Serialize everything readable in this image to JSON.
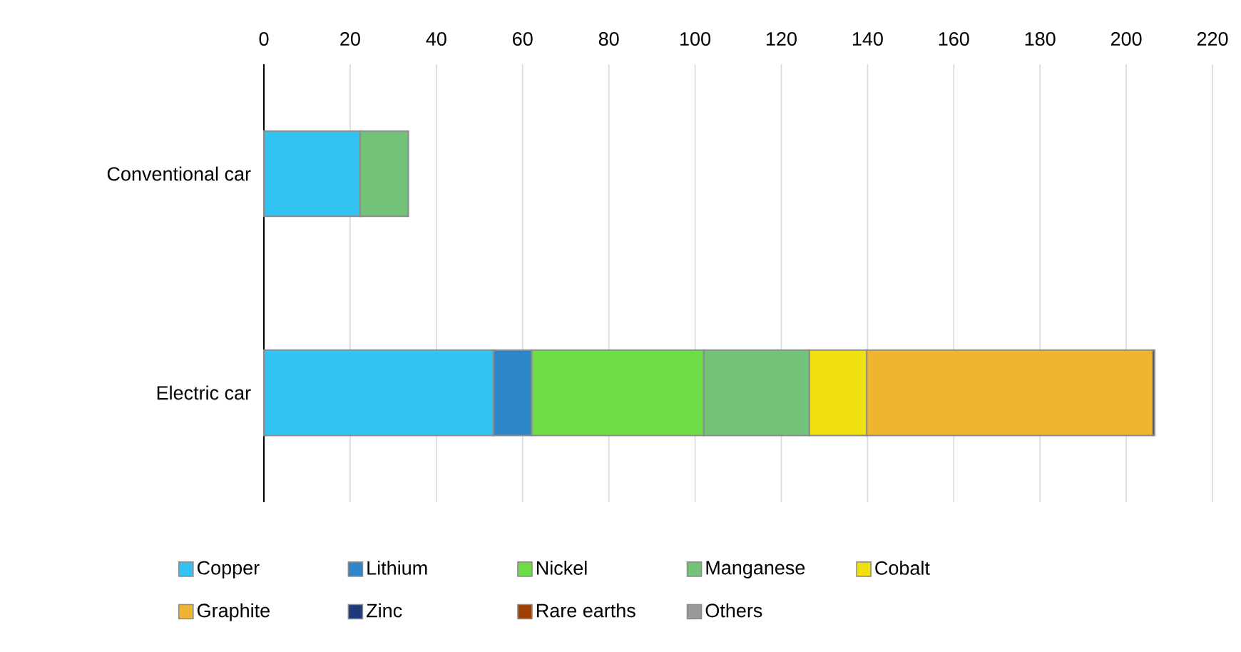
{
  "chart_data": {
    "type": "bar",
    "orientation": "horizontal",
    "stacked": true,
    "categories": [
      "Conventional car",
      "Electric car"
    ],
    "series": [
      {
        "name": "Copper",
        "color": "#33c3f2",
        "values": [
          22.3,
          53.2
        ]
      },
      {
        "name": "Lithium",
        "color": "#2e86c8",
        "values": [
          0,
          8.9
        ]
      },
      {
        "name": "Nickel",
        "color": "#6edc46",
        "values": [
          0,
          39.9
        ]
      },
      {
        "name": "Manganese",
        "color": "#72c27a",
        "values": [
          11.2,
          24.5
        ]
      },
      {
        "name": "Cobalt",
        "color": "#f0e010",
        "values": [
          0,
          13.3
        ]
      },
      {
        "name": "Graphite",
        "color": "#f0b530",
        "values": [
          0,
          66.3
        ]
      },
      {
        "name": "Zinc",
        "color": "#1f3a7a",
        "values": [
          null,
          null
        ]
      },
      {
        "name": "Rare earths",
        "color": "#a04000",
        "values": [
          0,
          0.5
        ]
      },
      {
        "name": "Others",
        "color": "#999999",
        "values": [
          null,
          null
        ]
      }
    ],
    "xlim": [
      0,
      220
    ],
    "xticks": [
      0,
      20,
      40,
      60,
      80,
      100,
      120,
      140,
      160,
      180,
      200,
      220
    ],
    "grid": "x",
    "legend": "bottom"
  }
}
